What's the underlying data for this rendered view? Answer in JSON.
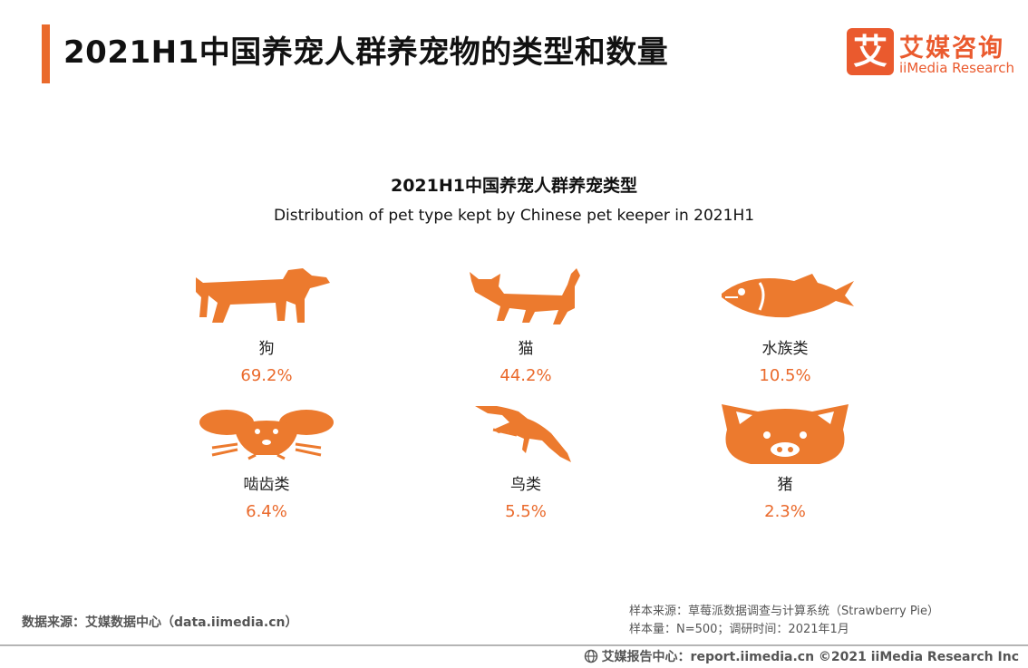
{
  "header": {
    "title": "2021H1中国养宠人群养宠物的类型和数量",
    "logo_cn": "艾媒咨询",
    "logo_en": "iiMedia Research",
    "logo_mark": "艾"
  },
  "chart_data": {
    "type": "pictograph",
    "title": "2021H1中国养宠人群养宠类型",
    "subtitle": "Distribution of pet type kept by Chinese pet keeper in 2021H1",
    "unit": "%",
    "categories": [
      "狗",
      "猫",
      "水族类",
      "啮齿类",
      "鸟类",
      "猪"
    ],
    "values": [
      69.2,
      44.2,
      10.5,
      6.4,
      5.5,
      2.3
    ],
    "value_labels": [
      "69.2%",
      "44.2%",
      "10.5%",
      "6.4%",
      "5.5%",
      "2.3%"
    ],
    "icons": [
      "dog-icon",
      "cat-icon",
      "fish-icon",
      "rodent-icon",
      "bird-icon",
      "pig-icon"
    ]
  },
  "footer": {
    "data_source": "数据来源：艾媒数据中心（data.iimedia.cn）",
    "sample_source": "样本来源：草莓派数据调查与计算系统（Strawberry Pie）",
    "sample_size": "样本量：N=500；调研时间：2021年1月",
    "copyright": "艾媒报告中心：report.iimedia.cn  ©2021  iiMedia Research  Inc"
  },
  "colors": {
    "accent": "#ea6a2c",
    "brand": "#ea5a2e",
    "icon": "#ec7a2e"
  }
}
